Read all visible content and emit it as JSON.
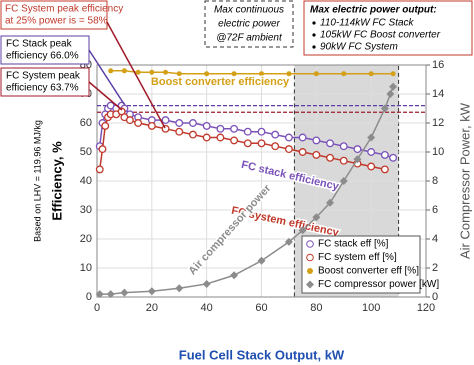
{
  "chart_data": {
    "type": "line",
    "x_label": "Fuel Cell Stack Output, kW",
    "y_label": "Efficiency, %",
    "y_note": "Based on LHV = 119.96 MJ/kg",
    "y2_label": "Air Compressor Power, kW",
    "xlim": [
      0,
      120
    ],
    "xticks": [
      0,
      20,
      40,
      60,
      80,
      100,
      120
    ],
    "ylim": [
      0,
      80
    ],
    "yticks": [
      0,
      10,
      20,
      30,
      40,
      50,
      60,
      70,
      80
    ],
    "y2lim": [
      0,
      16
    ],
    "y2ticks": [
      0,
      2,
      4,
      6,
      8,
      10,
      12,
      14,
      16
    ],
    "grid": true,
    "legend": "lower right",
    "highlight_x": [
      72,
      110
    ],
    "reference_lines": [
      {
        "value": 66.0,
        "color": "#5b3fa6"
      },
      {
        "value": 63.7,
        "color": "#a01a2a"
      }
    ],
    "series": [
      {
        "name": "FC stack eff [%]",
        "label": "FC stack efficiency",
        "color": "#7b52b9",
        "marker": "circle",
        "x": [
          1,
          2,
          3,
          4,
          5,
          7,
          9,
          10,
          12,
          15,
          20,
          25,
          30,
          35,
          40,
          45,
          50,
          55,
          60,
          65,
          70,
          75,
          80,
          85,
          90,
          95,
          100,
          105,
          108
        ],
        "values": [
          52,
          60,
          63,
          65,
          66,
          65,
          66,
          65,
          63,
          62,
          61,
          61,
          60,
          60,
          59,
          58,
          58,
          57,
          57,
          56,
          55,
          55,
          54,
          53,
          52,
          51,
          50,
          49,
          48
        ]
      },
      {
        "name": "FC system eff [%]",
        "label": "FC system efficiency",
        "color": "#c0392b",
        "marker": "circle",
        "x": [
          1,
          2,
          3,
          4,
          5,
          7,
          9,
          10,
          12,
          15,
          20,
          25,
          30,
          35,
          40,
          45,
          50,
          55,
          60,
          65,
          70,
          75,
          80,
          85,
          90,
          95,
          100,
          105
        ],
        "values": [
          44,
          51,
          59,
          62,
          63,
          63,
          64,
          62,
          61,
          60,
          59,
          58,
          57,
          56,
          55,
          55,
          54,
          53,
          53,
          52,
          51,
          50,
          49,
          48,
          47,
          46,
          45,
          44
        ]
      },
      {
        "name": "Boost converter eff [%]",
        "label": "Boost converter efficiency",
        "color": "#d4a017",
        "marker": "dot",
        "x": [
          5,
          10,
          15,
          20,
          25,
          30,
          40,
          50,
          60,
          70,
          80,
          90,
          100,
          108
        ],
        "values": [
          78,
          78,
          77.5,
          77.5,
          77.5,
          77,
          77,
          77,
          77,
          77,
          77,
          77,
          77,
          77
        ]
      },
      {
        "name": "FC compressor power [kW]",
        "label": "Air compressor power",
        "color": "#8c8c8c",
        "marker": "diamond",
        "axis": "y2",
        "x": [
          1,
          5,
          10,
          20,
          30,
          40,
          50,
          60,
          70,
          75,
          80,
          85,
          90,
          95,
          100,
          105,
          107,
          108
        ],
        "values": [
          0.2,
          0.2,
          0.3,
          0.4,
          0.6,
          0.9,
          1.5,
          2.5,
          3.8,
          4.6,
          5.5,
          6.5,
          8,
          9.5,
          11,
          13,
          14,
          14.5
        ]
      }
    ],
    "annotations": {
      "system_peak_25": [
        "FC System peak efficiency",
        "at 25% power is = 58%"
      ],
      "stack_peak": [
        "FC Stack peak",
        "efficiency 66.0%"
      ],
      "system_peak": [
        "FC System peak",
        "efficiency 63.7%"
      ],
      "max_continuous": [
        "Max continuous",
        "electric power",
        "@72F ambient"
      ],
      "max_output": {
        "title": "Max electric power output:",
        "items": [
          "110-114kW FC Stack",
          "105kW FC Boost converter",
          "90kW FC System"
        ]
      }
    }
  }
}
